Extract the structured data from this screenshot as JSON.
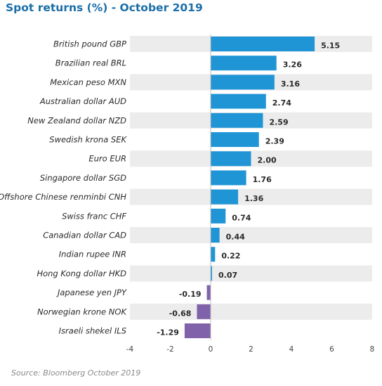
{
  "chart_data": {
    "type": "bar",
    "orientation": "horizontal",
    "title": "Spot returns (%) - October 2019",
    "categories": [
      "British pound GBP",
      "Brazilian real BRL",
      "Mexican peso MXN",
      "Australian dollar AUD",
      "New Zealand dollar NZD",
      "Swedish krona SEK",
      "Euro EUR",
      "Singapore dollar SGD",
      "Offshore Chinese renminbi CNH",
      "Swiss franc CHF",
      "Canadian dollar CAD",
      "Indian rupee INR",
      "Hong Kong dollar HKD",
      "Japanese yen JPY",
      "Norwegian krone NOK",
      "Israeli shekel ILS"
    ],
    "values": [
      5.15,
      3.26,
      3.16,
      2.74,
      2.59,
      2.39,
      2.0,
      1.76,
      1.36,
      0.74,
      0.44,
      0.22,
      0.07,
      -0.19,
      -0.68,
      -1.29
    ],
    "value_labels": [
      "5.15",
      "3.26",
      "3.16",
      "2.74",
      "2.59",
      "2.39",
      "2.00",
      "1.76",
      "1.36",
      "0.74",
      "0.44",
      "0.22",
      "0.07",
      "-0.19",
      "-0.68",
      "-1.29"
    ],
    "xlim": [
      -4,
      8
    ],
    "xticks": [
      -4,
      -2,
      0,
      2,
      4,
      6,
      8
    ],
    "xtick_labels": [
      "-4",
      "-2",
      "0",
      "2",
      "4",
      "6",
      "8"
    ],
    "xlabel": "",
    "ylabel": "",
    "grid": false,
    "colors": {
      "positive": "#1f95d6",
      "negative": "#8062ab",
      "row_band": "#ececec",
      "title": "#1b6ea8"
    }
  },
  "source": "Source: Bloomberg October 2019"
}
